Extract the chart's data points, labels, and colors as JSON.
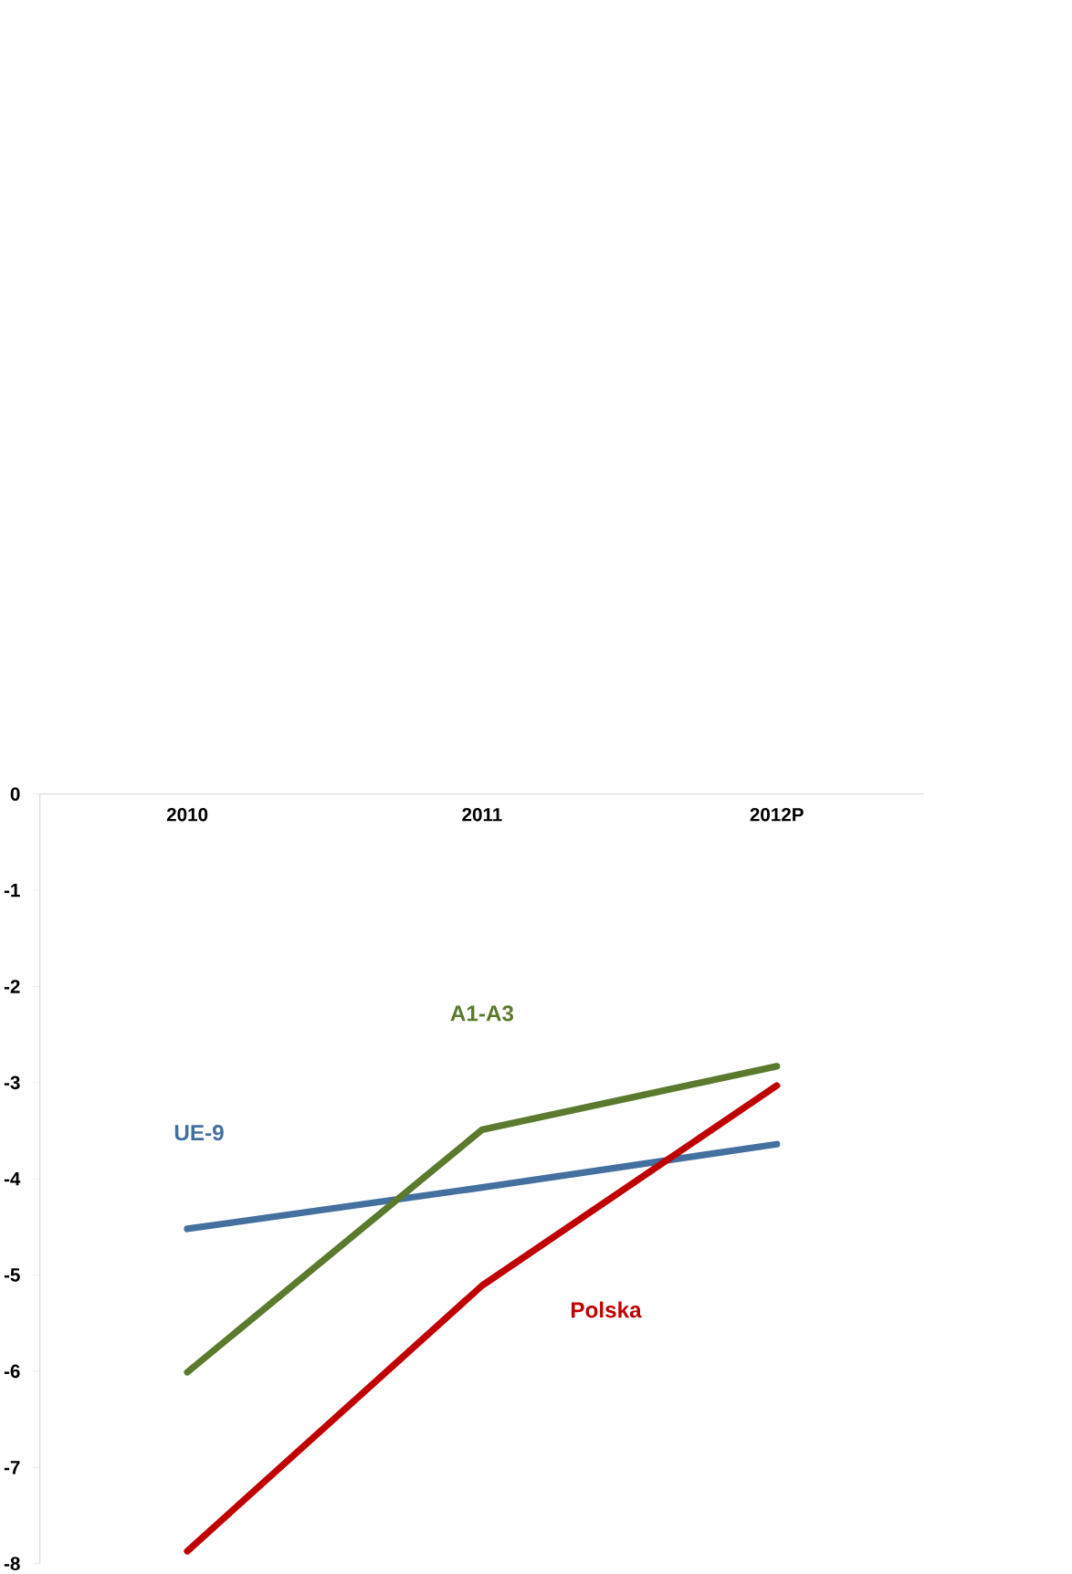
{
  "chart_data": {
    "type": "line",
    "categories": [
      "2010",
      "2011",
      "2012P"
    ],
    "ylim": [
      -8,
      0
    ],
    "yticks": [
      -8,
      -7,
      -6,
      -5,
      -4,
      -3,
      -2,
      -1,
      0
    ],
    "series": [
      {
        "name": "UE-9",
        "color": "#4470a0",
        "values": [
          -4.52,
          -4.09,
          -3.64
        ]
      },
      {
        "name": "A1-A3",
        "color": "#5b7a2e",
        "values": [
          -6.01,
          -3.49,
          -2.83
        ]
      },
      {
        "name": "Polska",
        "color": "#c00000",
        "values": [
          -7.87,
          -5.11,
          -3.03
        ]
      }
    ]
  }
}
